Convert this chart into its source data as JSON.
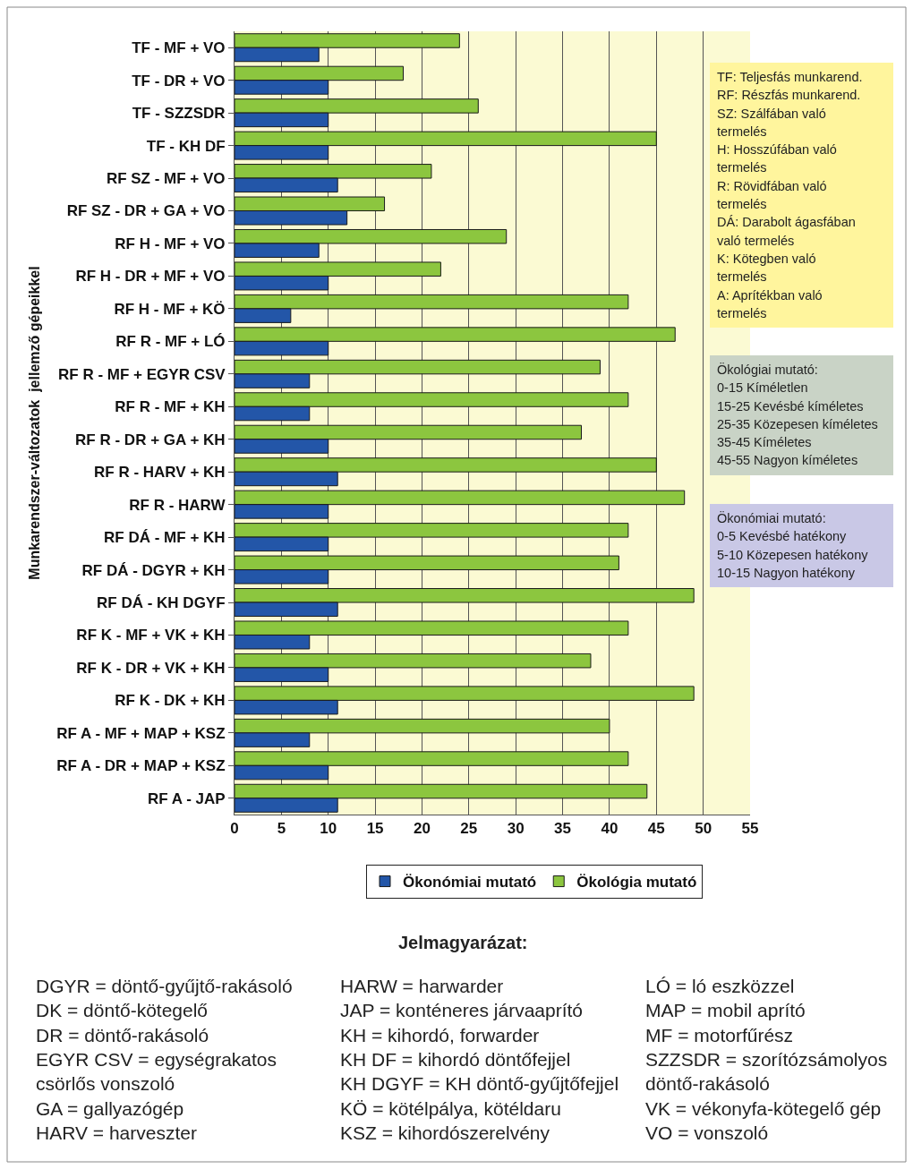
{
  "chart_data": {
    "type": "bar",
    "orientation": "horizontal",
    "ylabel": "Munkarendszer-változatok  jellemző gépeikkel",
    "categories": [
      "TF - MF + VO",
      "TF - DR + VO",
      "TF - SZZSDR",
      "TF - KH DF",
      "RF SZ - MF + VO",
      "RF SZ - DR + GA + VO",
      "RF H - MF + VO",
      "RF H - DR + MF + VO",
      "RF H - MF + KÖ",
      "RF R - MF + LÓ",
      "RF R - MF + EGYR CSV",
      "RF R - MF + KH",
      "RF R - DR + GA + KH",
      "RF R - HARV + KH",
      "RF R - HARW",
      "RF DÁ - MF + KH",
      "RF DÁ - DGYR + KH",
      "RF DÁ - KH DGYF",
      "RF K - MF + VK + KH",
      "RF K - DR + VK + KH",
      "RF K - DK + KH",
      "RF A - MF + MAP + KSZ",
      "RF A - DR + MAP + KSZ",
      "RF A - JAP"
    ],
    "series": [
      {
        "name": "Ökonómiai mutató",
        "color": "#2356a8",
        "values": [
          9,
          10,
          10,
          10,
          11,
          12,
          9,
          10,
          6,
          10,
          8,
          8,
          10,
          11,
          10,
          10,
          10,
          11,
          8,
          10,
          11,
          8,
          10,
          11
        ]
      },
      {
        "name": "Ökológia mutató",
        "color": "#8cc63f",
        "values": [
          24,
          18,
          26,
          45,
          21,
          16,
          29,
          22,
          42,
          47,
          39,
          42,
          37,
          45,
          48,
          42,
          41,
          49,
          42,
          38,
          49,
          40,
          42,
          44
        ]
      }
    ],
    "xlim": [
      0,
      55
    ],
    "xticks": [
      0,
      5,
      10,
      15,
      20,
      25,
      30,
      35,
      40,
      45,
      50,
      55
    ],
    "grid": "x",
    "legend": "bottom",
    "annotations": [
      "TF: Teljesfás munkarend.\nRF: Részfás munkarend.\nSZ: Szálfában való\ntermelés\nH: Hosszúfában való\ntermelés\nR: Rövidfában való\ntermelés\nDÁ: Darabolt ágasfában\nvaló termelés\nK: Kötegben való\ntermelés\nA: Aprítékban való\ntermelés",
      "Ökológiai mutató:\n0-15 Kíméletlen\n15-25 Kevésbé kíméletes\n25-35 Közepesen kíméletes\n35-45 Kíméletes\n45-55 Nagyon kíméletes",
      "Ökonómiai mutató:\n0-5  Kevésbé hatékony\n5-10 Közepesen hatékony\n10-15 Nagyon hatékony",
      "Jelmagyarázat:",
      "DGYR = döntő-gyűjtő-rakásoló\nDK = döntő-kötegelő\nDR = döntő-rakásoló\nEGYR CSV = egységrakatos\ncsörlős vonszoló\nGA = gallyazógép\nHARV = harveszter",
      "HARW = harwarder\nJAP = konténeres járvaaprító\nKH = kihordó, forwarder\nKH DF = kihordó döntőfejjel\nKH DGYF = KH döntő-gyűjtőfejjel\nKÖ = kötélpálya, kötéldaru\nKSZ = kihordószerelvény",
      "LÓ = ló eszközzel\nMAP = mobil aprító\nMF = motorfűrész\nSZZSDR = szorítózsámolyos\ndöntő-rakásoló\nVK = vékonyfa-kötegelő gép\nVO = vonszoló"
    ]
  }
}
